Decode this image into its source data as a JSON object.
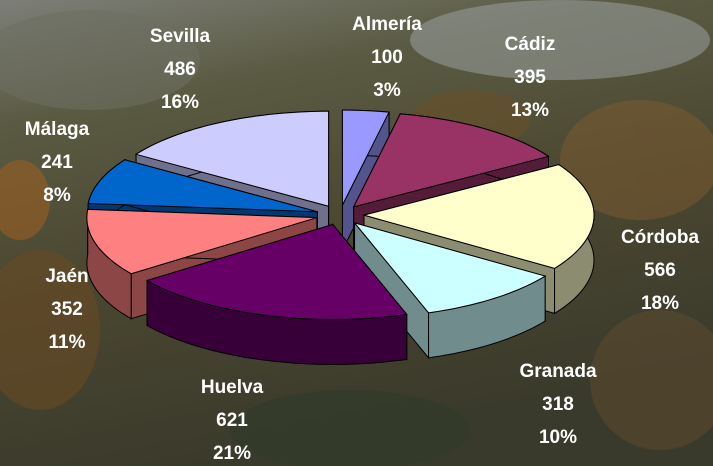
{
  "chart_data": {
    "type": "pie3d",
    "categories": [
      "Almería",
      "Cádiz",
      "Córdoba",
      "Granada",
      "Huelva",
      "Jaén",
      "Málaga",
      "Sevilla"
    ],
    "values": [
      100,
      395,
      566,
      318,
      621,
      352,
      241,
      486
    ],
    "percent_labels": [
      "3%",
      "13%",
      "18%",
      "10%",
      "21%",
      "11%",
      "8%",
      "16%"
    ],
    "colors": [
      "#9999ff",
      "#993366",
      "#ffffcc",
      "#ccffff",
      "#660066",
      "#ff8080",
      "#0066cc",
      "#ccccff"
    ]
  }
}
